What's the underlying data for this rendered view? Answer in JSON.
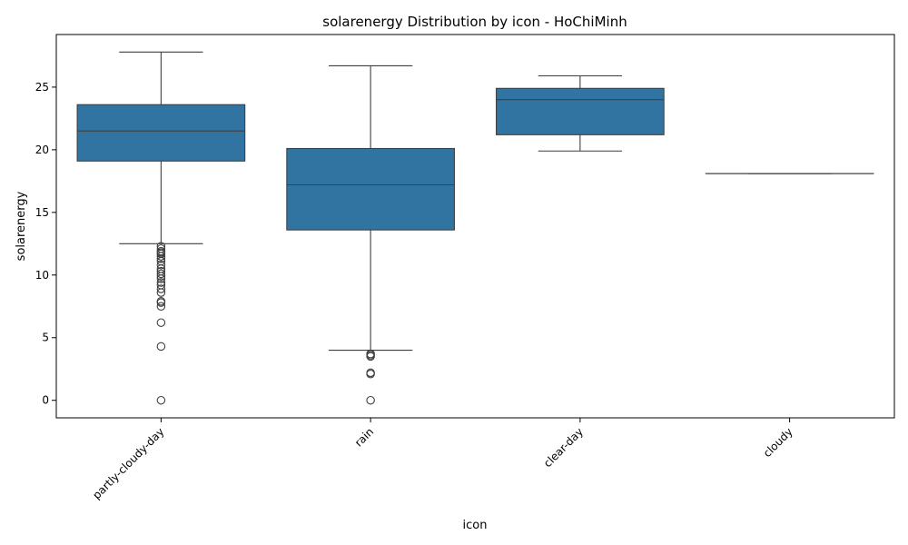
{
  "chart_data": {
    "type": "box",
    "title": "solarenergy Distribution by icon - HoChiMinh",
    "xlabel": "icon",
    "ylabel": "solarenergy",
    "ylim": [
      -1.4,
      29.2
    ],
    "yticks": [
      0,
      5,
      10,
      15,
      20,
      25
    ],
    "categories": [
      "partly-cloudy-day",
      "rain",
      "clear-day",
      "cloudy"
    ],
    "boxes": [
      {
        "category": "partly-cloudy-day",
        "whisker_low": 12.5,
        "q1": 19.1,
        "median": 21.5,
        "q3": 23.6,
        "whisker_high": 27.8,
        "outliers": [
          12.3,
          12.1,
          11.9,
          11.8,
          11.7,
          11.5,
          11.3,
          11.1,
          10.8,
          10.5,
          10.3,
          10.1,
          9.9,
          9.7,
          9.4,
          9.2,
          8.9,
          8.6,
          7.9,
          7.8,
          7.5,
          6.2,
          4.3,
          0.0
        ]
      },
      {
        "category": "rain",
        "whisker_low": 4.0,
        "q1": 13.6,
        "median": 17.2,
        "q3": 20.1,
        "whisker_high": 26.7,
        "outliers": [
          3.7,
          3.6,
          3.5,
          2.2,
          2.1,
          0.0
        ]
      },
      {
        "category": "clear-day",
        "whisker_low": 19.9,
        "q1": 21.2,
        "median": 24.0,
        "q3": 24.9,
        "whisker_high": 25.9,
        "outliers": []
      },
      {
        "category": "cloudy",
        "whisker_low": 18.1,
        "q1": 18.1,
        "median": 18.1,
        "q3": 18.1,
        "whisker_high": 18.1,
        "outliers": []
      }
    ],
    "box_color": "#3274a1",
    "line_color": "#3f3f3f"
  }
}
